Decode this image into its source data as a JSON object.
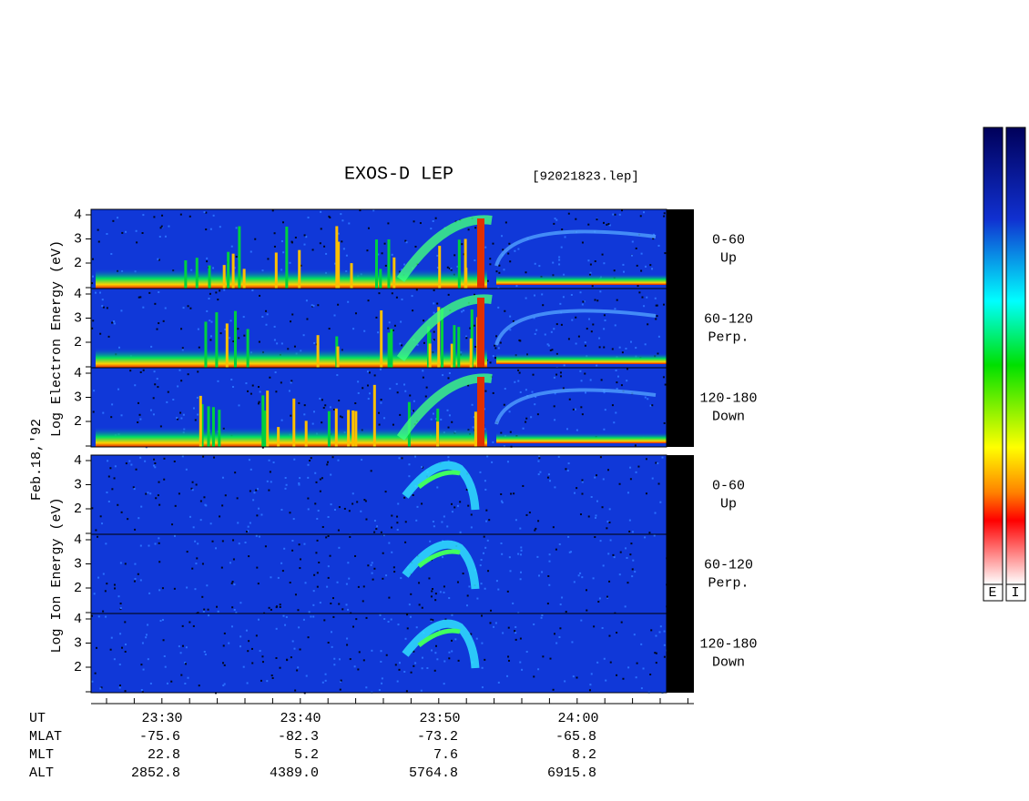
{
  "title": "EXOS-D LEP",
  "file": "[92021823.lep]",
  "date": "Feb.18,'92",
  "electron_axis_label": "Log  Electron  Energy (eV)",
  "ion_axis_label": "Log  Ion  Energy (eV)",
  "panels": [
    {
      "angle": "0-60",
      "direction": "Up"
    },
    {
      "angle": "60-120",
      "direction": "Perp."
    },
    {
      "angle": "120-180",
      "direction": "Down"
    },
    {
      "angle": "0-60",
      "direction": "Up"
    },
    {
      "angle": "60-120",
      "direction": "Perp."
    },
    {
      "angle": "120-180",
      "direction": "Down"
    }
  ],
  "yticks": [
    "4",
    "3",
    "2"
  ],
  "xticks": [
    "23:30",
    "23:40",
    "23:50",
    "24:00"
  ],
  "ephemeris": [
    {
      "label": "UT",
      "values": []
    },
    {
      "label": "MLAT",
      "values": [
        "-75.6",
        "-82.3",
        "-73.2",
        "-65.8"
      ]
    },
    {
      "label": "MLT",
      "values": [
        "22.8",
        "5.2",
        "7.6",
        "8.2"
      ]
    },
    {
      "label": "ALT",
      "values": [
        "2852.8",
        "4389.0",
        "5764.8",
        "6915.8"
      ]
    }
  ],
  "colorbars": [
    "E",
    "I"
  ]
}
